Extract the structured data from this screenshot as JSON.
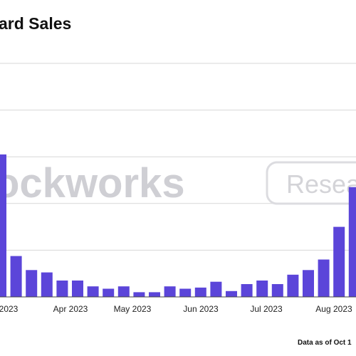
{
  "chart_data": {
    "type": "bar",
    "title": "ard Sales",
    "footnote": "Data as of Oct 1",
    "xlabel": "",
    "ylabel": "",
    "grid": true,
    "bar_color": "#5b45d9",
    "x_tick_labels": [
      "2023",
      "Apr 2023",
      "May 2023",
      "Jun 2023",
      "Jul 2023",
      "Aug 2023"
    ],
    "watermark": {
      "main": "ockworks",
      "sub": "Resea"
    },
    "values": [
      122,
      35,
      23,
      21,
      14,
      14,
      9,
      7,
      9,
      4,
      4,
      9,
      7,
      8,
      13,
      5,
      11,
      14,
      11,
      19,
      23,
      32,
      60,
      94
    ],
    "ylim": [
      0,
      200
    ]
  }
}
